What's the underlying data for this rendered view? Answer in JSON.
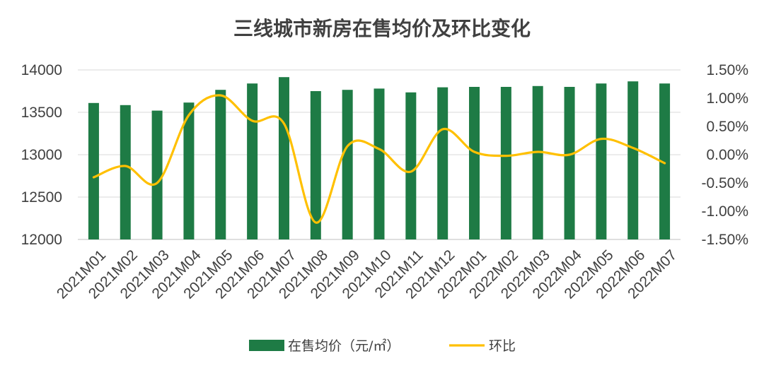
{
  "chart_data": {
    "type": "bar",
    "title": "三线城市新房在售均价及环比变化",
    "categories": [
      "2021M01",
      "2021M02",
      "2021M03",
      "2021M04",
      "2021M05",
      "2021M06",
      "2021M07",
      "2021M08",
      "2021M09",
      "2021M10",
      "2021M11",
      "2021M12",
      "2022M01",
      "2022M02",
      "2022M03",
      "2022M04",
      "2022M05",
      "2022M06",
      "2022M07"
    ],
    "series": [
      {
        "name": "在售均价（元/㎡）",
        "type": "bar",
        "axis": "left",
        "color": "#1e7b45",
        "values": [
          13610,
          13585,
          13520,
          13615,
          13765,
          13840,
          13915,
          13750,
          13765,
          13780,
          13735,
          13795,
          13800,
          13800,
          13810,
          13800,
          13840,
          13865,
          13840
        ]
      },
      {
        "name": "环比",
        "type": "line",
        "axis": "right",
        "color": "#ffc000",
        "values": [
          -0.4,
          -0.2,
          -0.5,
          0.7,
          1.05,
          0.6,
          0.55,
          -1.2,
          0.15,
          0.1,
          -0.3,
          0.45,
          0.05,
          -0.02,
          0.05,
          0.0,
          0.28,
          0.12,
          -0.15
        ]
      }
    ],
    "ylim_left": [
      12000,
      14000
    ],
    "yticks_left": [
      "12000",
      "12500",
      "13000",
      "13500",
      "14000"
    ],
    "ylim_right": [
      -1.5,
      1.5
    ],
    "yticks_right": [
      "-1.50%",
      "-1.00%",
      "-0.50%",
      "0.00%",
      "0.50%",
      "1.00%",
      "1.50%"
    ],
    "grid": true,
    "legend_position": "bottom"
  }
}
